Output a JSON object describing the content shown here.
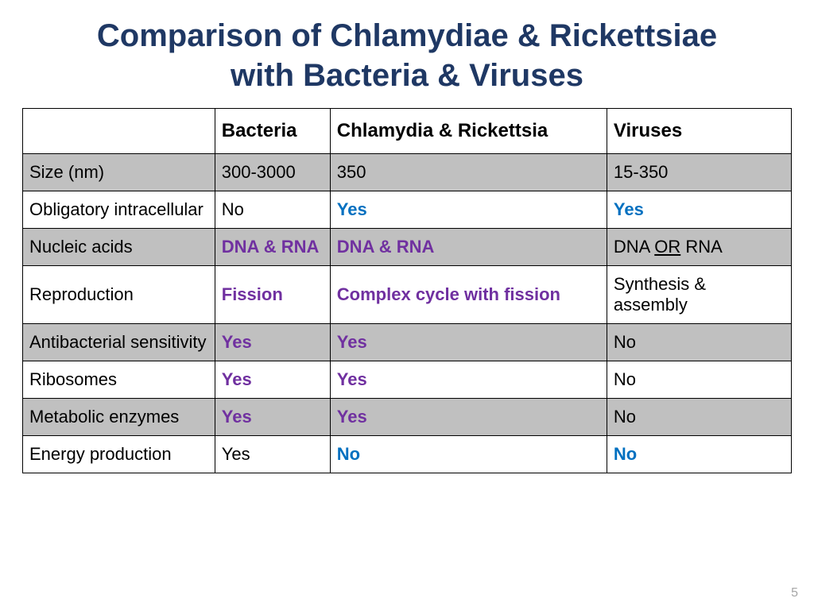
{
  "title_line1": "Comparison of Chlamydiae & Rickettsiae",
  "title_line2": "with Bacteria & Viruses",
  "page_number": "5",
  "table": {
    "columns": [
      "",
      "Bacteria",
      "Chlamydia & Rickettsia",
      "Viruses"
    ],
    "rows": [
      {
        "label": "Size (nm)",
        "cells": [
          {
            "text": "300-3000"
          },
          {
            "text": "350"
          },
          {
            "text": "15-350"
          }
        ]
      },
      {
        "label": "Obligatory intracellular",
        "cells": [
          {
            "text": "No"
          },
          {
            "text": "Yes",
            "style": "bold blue"
          },
          {
            "text": "Yes",
            "style": "bold blue"
          }
        ]
      },
      {
        "label": "Nucleic acids",
        "cells": [
          {
            "text": "DNA & RNA",
            "style": "bold purple"
          },
          {
            "text": "DNA & RNA",
            "style": "bold purple"
          },
          {
            "prefix": "DNA ",
            "mid": "OR",
            "suffix": " RNA",
            "mid_style": "underline"
          }
        ]
      },
      {
        "label": "Reproduction",
        "cells": [
          {
            "text": "Fission",
            "style": "bold purple"
          },
          {
            "text": "Complex cycle with fission",
            "style": "bold purple"
          },
          {
            "text": "Synthesis & assembly"
          }
        ]
      },
      {
        "label": "Antibacterial sensitivity",
        "cells": [
          {
            "text": "Yes",
            "style": "bold purple"
          },
          {
            "text": "Yes",
            "style": "bold purple"
          },
          {
            "text": "No"
          }
        ]
      },
      {
        "label": "Ribosomes",
        "cells": [
          {
            "text": "Yes",
            "style": "bold purple"
          },
          {
            "text": "Yes",
            "style": "bold purple"
          },
          {
            "text": "No"
          }
        ]
      },
      {
        "label": "Metabolic enzymes",
        "cells": [
          {
            "text": "Yes",
            "style": "bold purple"
          },
          {
            "text": "Yes",
            "style": "bold purple"
          },
          {
            "text": "No"
          }
        ]
      },
      {
        "label": "Energy production",
        "cells": [
          {
            "text": "Yes"
          },
          {
            "text": "No",
            "style": "bold blue"
          },
          {
            "text": "No",
            "style": "bold blue"
          }
        ]
      }
    ]
  },
  "colors": {
    "title": "#1f3864",
    "purple": "#7030a0",
    "blue": "#0070c0",
    "shade": "#c0c0c0",
    "border": "#000000",
    "pagenum": "#a6a6a6"
  }
}
